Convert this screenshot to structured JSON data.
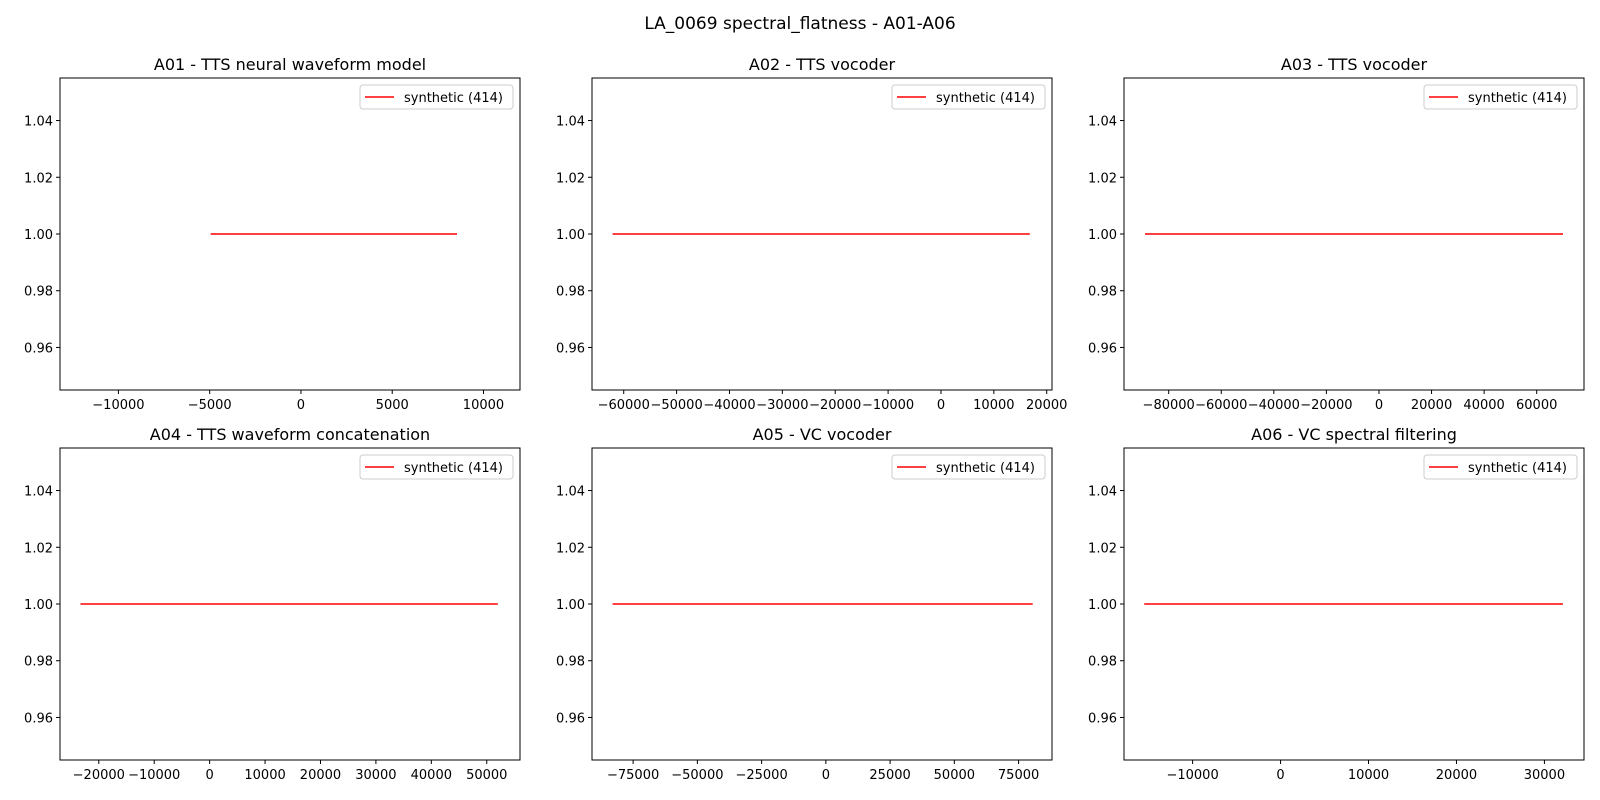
{
  "figure_title": "LA_0069 spectral_flatness - A01-A06",
  "chart_data": [
    {
      "type": "line",
      "title": "A01 - TTS neural waveform model",
      "xlim": [
        -13200,
        12000
      ],
      "ylim": [
        0.945,
        1.055
      ],
      "xticks": [
        -10000,
        -5000,
        0,
        5000,
        10000
      ],
      "xtick_labels": [
        "−10000",
        "−5000",
        "0",
        "5000",
        "10000"
      ],
      "yticks": [
        0.96,
        0.98,
        1.0,
        1.02,
        1.04
      ],
      "ytick_labels": [
        "0.96",
        "0.98",
        "1.00",
        "1.02",
        "1.04"
      ],
      "legend_position": "upper right",
      "series": [
        {
          "name": "synthetic (414)",
          "color": "#ff0000",
          "x": [
            -4950,
            8550
          ],
          "y": [
            1.0,
            1.0
          ]
        }
      ]
    },
    {
      "type": "line",
      "title": "A02 - TTS vocoder",
      "xlim": [
        -66000,
        21000
      ],
      "ylim": [
        0.945,
        1.055
      ],
      "xticks": [
        -60000,
        -50000,
        -40000,
        -30000,
        -20000,
        -10000,
        0,
        10000,
        20000
      ],
      "xtick_labels": [
        "−60000",
        "−50000",
        "−40000",
        "−30000",
        "−20000",
        "−10000",
        "0",
        "10000",
        "20000"
      ],
      "yticks": [
        0.96,
        0.98,
        1.0,
        1.02,
        1.04
      ],
      "ytick_labels": [
        "0.96",
        "0.98",
        "1.00",
        "1.02",
        "1.04"
      ],
      "legend_position": "upper right",
      "series": [
        {
          "name": "synthetic (414)",
          "color": "#ff0000",
          "x": [
            -62100,
            16800
          ],
          "y": [
            1.0,
            1.0
          ]
        }
      ]
    },
    {
      "type": "line",
      "title": "A03 - TTS vocoder",
      "xlim": [
        -97000,
        78000
      ],
      "ylim": [
        0.945,
        1.055
      ],
      "xticks": [
        -80000,
        -60000,
        -40000,
        -20000,
        0,
        20000,
        40000,
        60000
      ],
      "xtick_labels": [
        "−80000",
        "−60000",
        "−40000",
        "−20000",
        "0",
        "20000",
        "40000",
        "60000"
      ],
      "yticks": [
        0.96,
        0.98,
        1.0,
        1.02,
        1.04
      ],
      "ytick_labels": [
        "0.96",
        "0.98",
        "1.00",
        "1.02",
        "1.04"
      ],
      "legend_position": "upper right",
      "series": [
        {
          "name": "synthetic (414)",
          "color": "#ff0000",
          "x": [
            -89000,
            70000
          ],
          "y": [
            1.0,
            1.0
          ]
        }
      ]
    },
    {
      "type": "line",
      "title": "A04 - TTS waveform concatenation",
      "xlim": [
        -27000,
        56000
      ],
      "ylim": [
        0.945,
        1.055
      ],
      "xticks": [
        -20000,
        -10000,
        0,
        10000,
        20000,
        30000,
        40000,
        50000
      ],
      "xtick_labels": [
        "−20000",
        "−10000",
        "0",
        "10000",
        "20000",
        "30000",
        "40000",
        "50000"
      ],
      "yticks": [
        0.96,
        0.98,
        1.0,
        1.02,
        1.04
      ],
      "ytick_labels": [
        "0.96",
        "0.98",
        "1.00",
        "1.02",
        "1.04"
      ],
      "legend_position": "upper right",
      "series": [
        {
          "name": "synthetic (414)",
          "color": "#ff0000",
          "x": [
            -23300,
            52000
          ],
          "y": [
            1.0,
            1.0
          ]
        }
      ]
    },
    {
      "type": "line",
      "title": "A05 - VC vocoder",
      "xlim": [
        -91000,
        88000
      ],
      "ylim": [
        0.945,
        1.055
      ],
      "xticks": [
        -75000,
        -50000,
        -25000,
        0,
        25000,
        50000,
        75000
      ],
      "xtick_labels": [
        "−75000",
        "−50000",
        "−25000",
        "0",
        "25000",
        "50000",
        "75000"
      ],
      "yticks": [
        0.96,
        0.98,
        1.0,
        1.02,
        1.04
      ],
      "ytick_labels": [
        "0.96",
        "0.98",
        "1.00",
        "1.02",
        "1.04"
      ],
      "legend_position": "upper right",
      "series": [
        {
          "name": "synthetic (414)",
          "color": "#ff0000",
          "x": [
            -83000,
            80500
          ],
          "y": [
            1.0,
            1.0
          ]
        }
      ]
    },
    {
      "type": "line",
      "title": "A06 - VC spectral filtering",
      "xlim": [
        -17800,
        34500
      ],
      "ylim": [
        0.945,
        1.055
      ],
      "xticks": [
        -10000,
        0,
        10000,
        20000,
        30000
      ],
      "xtick_labels": [
        "−10000",
        "0",
        "10000",
        "20000",
        "30000"
      ],
      "yticks": [
        0.96,
        0.98,
        1.0,
        1.02,
        1.04
      ],
      "ytick_labels": [
        "0.96",
        "0.98",
        "1.00",
        "1.02",
        "1.04"
      ],
      "legend_position": "upper right",
      "series": [
        {
          "name": "synthetic (414)",
          "color": "#ff0000",
          "x": [
            -15500,
            32100
          ],
          "y": [
            1.0,
            1.0
          ]
        }
      ]
    }
  ]
}
